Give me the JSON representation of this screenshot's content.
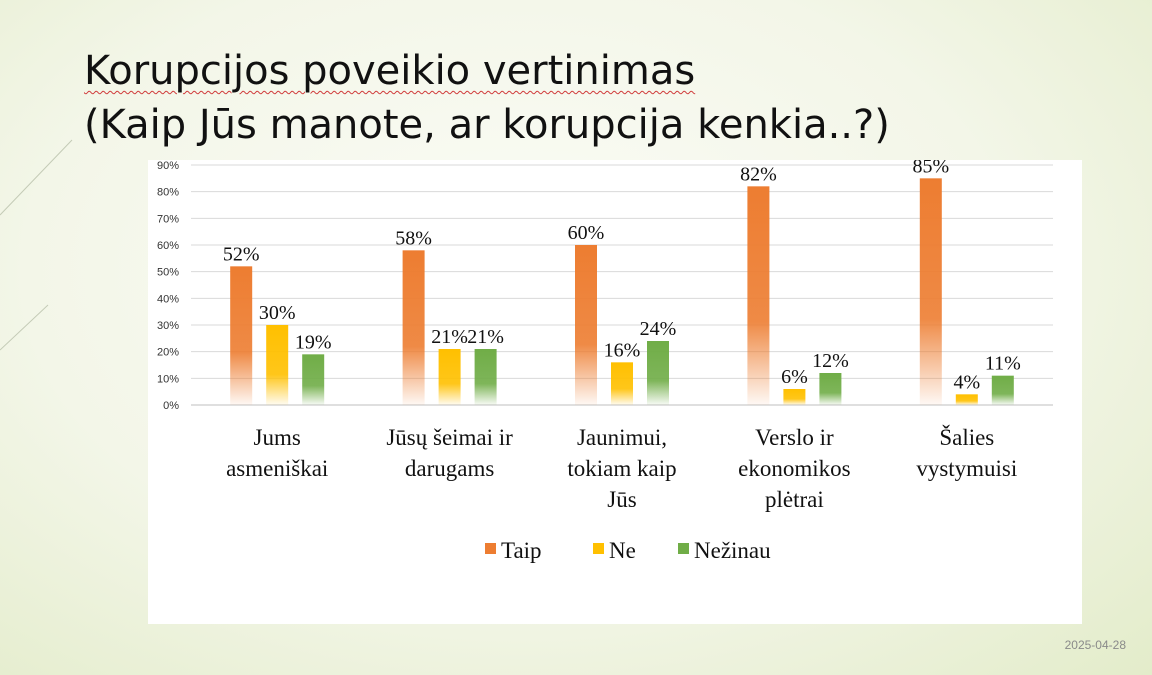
{
  "slide": {
    "title_line1": "Korupcijos poveikio vertinimas",
    "title_line2": "(Kaip Jūs manote, ar korupcija kenkia..?)",
    "date": "2025-04-28"
  },
  "colors": {
    "series": [
      "#ED7D31",
      "#FFC000",
      "#70AD47"
    ],
    "gridline": "#d9d9d9",
    "axis": "#bfbfbf"
  },
  "chart_data": {
    "type": "bar",
    "categories": [
      [
        "Jums",
        "asmeniškai"
      ],
      [
        "Jūsų šeimai ir",
        "darugams"
      ],
      [
        "Jaunimui,",
        "tokiam kaip",
        "Jūs"
      ],
      [
        "Verslo ir",
        "ekonomikos",
        "plėtrai"
      ],
      [
        "Šalies",
        "vystymuisi"
      ]
    ],
    "series": [
      {
        "name": "Taip",
        "values": [
          52,
          58,
          60,
          82,
          85
        ]
      },
      {
        "name": "Ne",
        "values": [
          30,
          21,
          16,
          6,
          4
        ]
      },
      {
        "name": "Nežinau",
        "values": [
          19,
          21,
          24,
          12,
          11
        ]
      }
    ],
    "ylim": [
      0,
      90
    ],
    "yticks": [
      "0%",
      "10%",
      "20%",
      "30%",
      "40%",
      "50%",
      "60%",
      "70%",
      "80%",
      "90%"
    ],
    "value_suffix": "%",
    "grid": true,
    "legend_position": "bottom"
  }
}
